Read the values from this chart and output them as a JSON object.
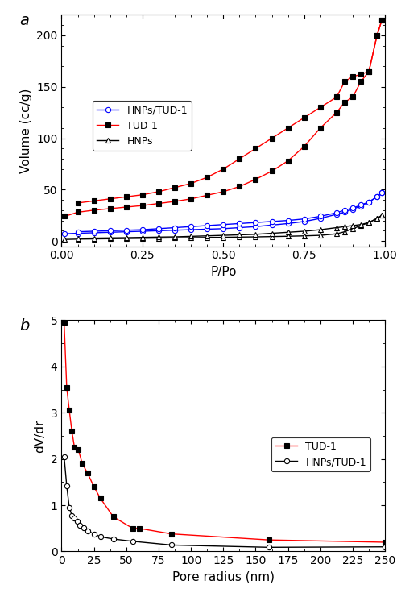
{
  "panel_a": {
    "title_label": "a",
    "xlabel": "P/Po",
    "ylabel": "Volume (cc/g)",
    "xlim": [
      0,
      1.0
    ],
    "ylim": [
      -5,
      220
    ],
    "yticks": [
      0,
      50,
      100,
      150,
      200
    ],
    "xticks": [
      0.0,
      0.25,
      0.5,
      0.75,
      1.0
    ],
    "HNPs_TUD1_ads": {
      "color": "#0000FF",
      "marker": "o",
      "label": "HNPs/TUD-1",
      "x": [
        0.01,
        0.05,
        0.1,
        0.15,
        0.2,
        0.25,
        0.3,
        0.35,
        0.4,
        0.45,
        0.5,
        0.55,
        0.6,
        0.65,
        0.7,
        0.75,
        0.8,
        0.85,
        0.875,
        0.9,
        0.925,
        0.95,
        0.975,
        0.99
      ],
      "y": [
        7.0,
        7.5,
        8.0,
        8.5,
        9.0,
        9.5,
        10.0,
        10.5,
        11.0,
        11.5,
        12.0,
        13.0,
        14.0,
        15.5,
        17.0,
        19.0,
        22.0,
        26.0,
        28.0,
        31.0,
        34.0,
        38.0,
        43.0,
        47.0
      ]
    },
    "HNPs_TUD1_des": {
      "color": "#0000FF",
      "marker": "o",
      "x": [
        0.99,
        0.975,
        0.95,
        0.925,
        0.9,
        0.875,
        0.85,
        0.8,
        0.75,
        0.7,
        0.65,
        0.6,
        0.55,
        0.5,
        0.45,
        0.4,
        0.35,
        0.3,
        0.25,
        0.2,
        0.15,
        0.1,
        0.05
      ],
      "y": [
        47.0,
        43.0,
        38.0,
        35.0,
        32.0,
        30.0,
        27.5,
        24.0,
        21.5,
        20.0,
        19.0,
        18.0,
        17.0,
        16.0,
        15.0,
        14.0,
        13.0,
        12.0,
        11.0,
        10.5,
        10.0,
        9.5,
        9.0
      ]
    },
    "TUD1_ads": {
      "color": "#FF0000",
      "marker": "s",
      "label": "TUD-1",
      "x": [
        0.01,
        0.05,
        0.1,
        0.15,
        0.2,
        0.25,
        0.3,
        0.35,
        0.4,
        0.45,
        0.5,
        0.55,
        0.6,
        0.65,
        0.7,
        0.75,
        0.8,
        0.85,
        0.875,
        0.9,
        0.925,
        0.95,
        0.975,
        0.99
      ],
      "y": [
        24.0,
        28.0,
        30.0,
        31.5,
        33.0,
        34.5,
        36.5,
        38.5,
        41.0,
        44.5,
        48.0,
        53.0,
        60.0,
        68.0,
        78.0,
        92.0,
        110.0,
        125.0,
        135.0,
        140.0,
        155.0,
        165.0,
        200.0,
        215.0
      ]
    },
    "TUD1_des": {
      "color": "#FF0000",
      "marker": "s",
      "x": [
        0.99,
        0.975,
        0.95,
        0.925,
        0.9,
        0.875,
        0.85,
        0.8,
        0.75,
        0.7,
        0.65,
        0.6,
        0.55,
        0.5,
        0.45,
        0.4,
        0.35,
        0.3,
        0.25,
        0.2,
        0.15,
        0.1,
        0.05
      ],
      "y": [
        215.0,
        200.0,
        165.0,
        162.0,
        160.0,
        155.0,
        140.0,
        130.0,
        120.0,
        110.0,
        100.0,
        90.0,
        80.0,
        70.0,
        62.0,
        56.0,
        52.0,
        48.0,
        45.0,
        43.0,
        41.0,
        39.0,
        37.0
      ]
    },
    "HNPs_ads": {
      "color": "#000000",
      "marker": "^",
      "label": "HNPs",
      "x": [
        0.01,
        0.05,
        0.1,
        0.15,
        0.2,
        0.25,
        0.3,
        0.35,
        0.4,
        0.45,
        0.5,
        0.55,
        0.6,
        0.65,
        0.7,
        0.75,
        0.8,
        0.85,
        0.875,
        0.9,
        0.925,
        0.95,
        0.975,
        0.99
      ],
      "y": [
        1.5,
        1.8,
        2.0,
        2.2,
        2.4,
        2.6,
        2.8,
        3.0,
        3.2,
        3.4,
        3.6,
        3.8,
        4.0,
        4.3,
        4.6,
        5.0,
        5.5,
        7.0,
        9.0,
        12.0,
        15.0,
        18.0,
        22.0,
        25.0
      ]
    },
    "HNPs_des": {
      "color": "#000000",
      "marker": "^",
      "x": [
        0.99,
        0.975,
        0.95,
        0.925,
        0.9,
        0.875,
        0.85,
        0.8,
        0.75,
        0.7,
        0.65,
        0.6,
        0.55,
        0.5,
        0.45,
        0.4,
        0.35,
        0.3,
        0.25,
        0.2,
        0.15,
        0.1,
        0.05
      ],
      "y": [
        25.0,
        22.0,
        18.0,
        16.0,
        15.0,
        14.0,
        13.0,
        11.0,
        9.5,
        8.5,
        7.5,
        6.5,
        6.0,
        5.5,
        5.0,
        4.5,
        4.0,
        3.8,
        3.5,
        3.2,
        3.0,
        2.8,
        2.6
      ]
    }
  },
  "panel_b": {
    "title_label": "b",
    "xlabel": "Pore radius (nm)",
    "ylabel": "dV/dr",
    "xlim": [
      0,
      250
    ],
    "ylim": [
      0,
      5
    ],
    "yticks": [
      0,
      1,
      2,
      3,
      4,
      5
    ],
    "xticks": [
      0,
      25,
      50,
      75,
      100,
      125,
      150,
      175,
      200,
      225,
      250
    ],
    "TUD1": {
      "color": "#FF0000",
      "marker": "s",
      "label": "TUD-1",
      "x": [
        2,
        4,
        6,
        8,
        10,
        13,
        16,
        20,
        25,
        30,
        40,
        55,
        60,
        85,
        160,
        250
      ],
      "y": [
        4.95,
        3.55,
        3.05,
        2.6,
        2.25,
        2.2,
        1.9,
        1.7,
        1.4,
        1.15,
        0.75,
        0.5,
        0.5,
        0.38,
        0.25,
        0.2
      ]
    },
    "HNPs_TUD1": {
      "color": "#000000",
      "marker": "o",
      "label": "HNPs/TUD-1",
      "x": [
        2,
        4,
        6,
        8,
        10,
        12,
        14,
        17,
        20,
        25,
        30,
        40,
        55,
        85,
        160,
        250
      ],
      "y": [
        2.05,
        1.42,
        0.95,
        0.78,
        0.73,
        0.65,
        0.57,
        0.52,
        0.45,
        0.38,
        0.32,
        0.27,
        0.22,
        0.14,
        0.09,
        0.1
      ]
    }
  }
}
